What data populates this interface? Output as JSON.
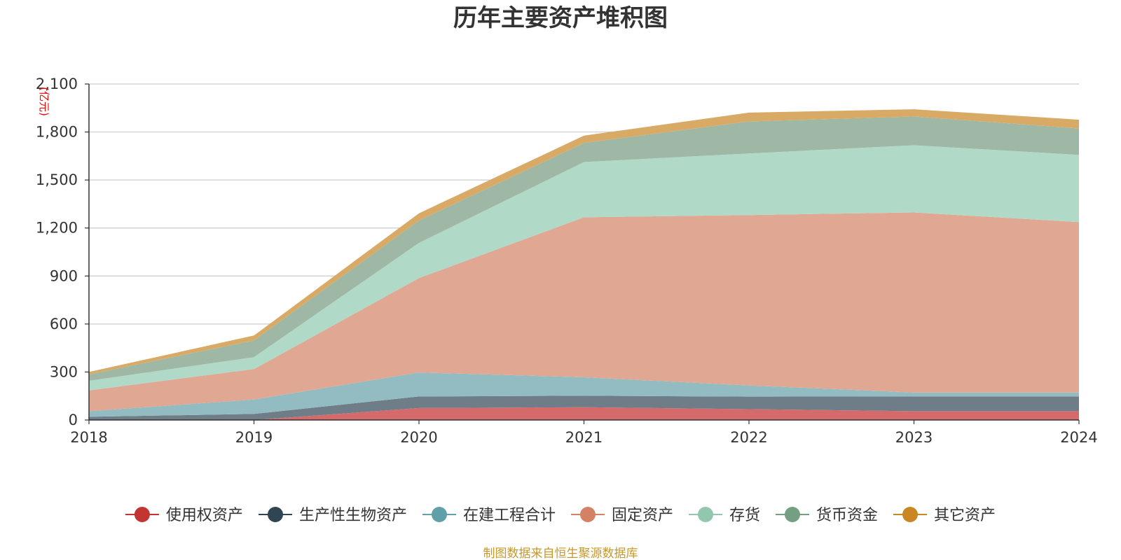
{
  "chart_data": {
    "type": "area",
    "stacked": true,
    "title": "历年主要资产堆积图",
    "ylabel": "(亿元)",
    "xlabel": "",
    "categories": [
      "2018",
      "2019",
      "2020",
      "2021",
      "2022",
      "2023",
      "2024"
    ],
    "ylim": [
      0,
      2100
    ],
    "yticks": [
      0,
      300,
      600,
      900,
      1200,
      1500,
      1800,
      2100
    ],
    "ytick_labels": [
      "0",
      "300",
      "600",
      "900",
      "1,200",
      "1,500",
      "1,800",
      "2,100"
    ],
    "grid": true,
    "legend_position": "bottom",
    "series": [
      {
        "name": "使用权资产",
        "color": "#c23531",
        "fill": "#d46b6a",
        "values": [
          0,
          0,
          75,
          80,
          68,
          55,
          55
        ]
      },
      {
        "name": "生产性生物资产",
        "color": "#2f4554",
        "fill": "#6f7d88",
        "values": [
          20,
          38,
          72,
          72,
          78,
          92,
          92
        ]
      },
      {
        "name": "在建工程合计",
        "color": "#61a0a8",
        "fill": "#93bcc2",
        "values": [
          35,
          90,
          150,
          115,
          70,
          25,
          25
        ]
      },
      {
        "name": "固定资产",
        "color": "#d48265",
        "fill": "#e0a793",
        "values": [
          130,
          190,
          590,
          1000,
          1065,
          1125,
          1065
        ]
      },
      {
        "name": "存货",
        "color": "#91c7ae",
        "fill": "#b0dac7",
        "values": [
          60,
          75,
          220,
          345,
          385,
          420,
          420
        ]
      },
      {
        "name": "货币资金",
        "color": "#749f83",
        "fill": "#9fb8a5",
        "values": [
          40,
          105,
          140,
          120,
          200,
          180,
          165
        ]
      },
      {
        "name": "其它资产",
        "color": "#ca8622",
        "fill": "#d8aa66",
        "values": [
          15,
          30,
          45,
          45,
          55,
          45,
          55
        ]
      }
    ]
  },
  "source_note": "制图数据来自恒生聚源数据库"
}
